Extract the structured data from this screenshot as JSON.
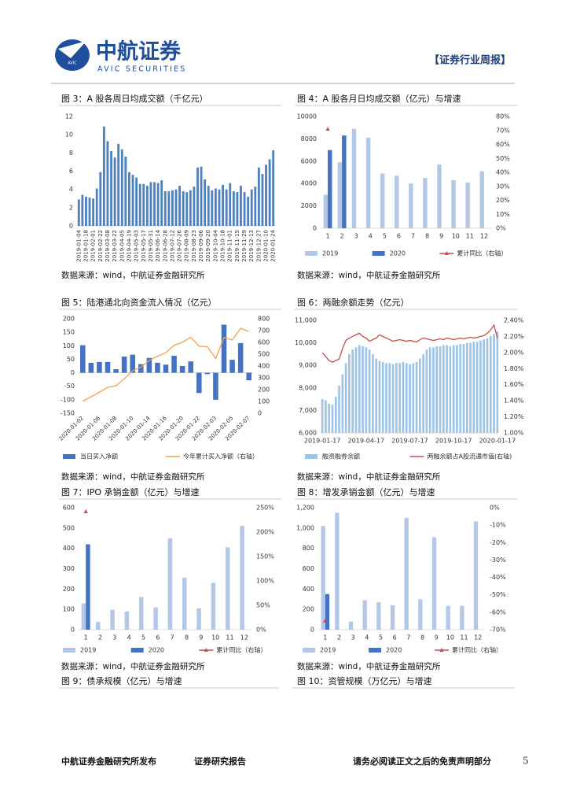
{
  "header": {
    "logo_mark": "AVIC",
    "logo_cn": "中航证券",
    "logo_en": "AVIC SECURITIES",
    "report_type": "【证券行业周报】"
  },
  "chart_data": [
    {
      "type": "bar",
      "title": "图 3：A 股各周日均成交额（千亿元）",
      "source": "数据来源：wind，中航证券金融研究所",
      "categories": [
        "2019-01-04",
        null,
        "2019-01-18",
        null,
        "2019-02-01",
        null,
        "2019-02-22",
        null,
        "2019-03-08",
        null,
        "2019-03-22",
        null,
        "2019-04-05",
        null,
        "2019-04-19",
        null,
        "2019-05-03",
        null,
        "2019-05-17",
        null,
        "2019-05-31",
        null,
        "2019-06-14",
        null,
        "2019-06-28",
        null,
        "2019-07-12",
        null,
        "2019-07-26",
        null,
        "2019-08-09",
        null,
        "2019-08-23",
        null,
        "2019-09-06",
        null,
        "2019-09-20",
        null,
        "2019-10-04",
        null,
        "2019-10-18",
        null,
        "2019-11-01",
        null,
        "2019-11-15",
        null,
        "2019-11-29",
        null,
        "2019-12-13",
        null,
        "2019-12-27",
        null,
        "2020-01-10",
        null,
        "2020-01-24"
      ],
      "series": [
        {
          "name": "成交额",
          "color": "#4f81bd",
          "values": [
            2.9,
            3.4,
            3.2,
            3.1,
            3.0,
            4.1,
            5.9,
            10.9,
            9.3,
            8.2,
            7.5,
            9.0,
            8.4,
            7.6,
            5.9,
            5.6,
            5.3,
            4.6,
            4.6,
            4.4,
            4.8,
            4.8,
            4.7,
            5.0,
            3.8,
            3.8,
            3.9,
            4.0,
            4.4,
            3.8,
            3.7,
            3.9,
            4.3,
            6.4,
            6.5,
            5.1,
            4.4,
            3.9,
            4.1,
            4.0,
            4.5,
            4.0,
            4.7,
            3.8,
            3.7,
            4.4,
            3.7,
            3.2,
            4.0,
            4.3,
            6.4,
            5.7,
            6.7,
            7.3,
            8.3
          ]
        }
      ],
      "ylim": [
        0,
        12
      ],
      "yticks": [
        0,
        2,
        4,
        6,
        8,
        10,
        12
      ],
      "legend": false
    },
    {
      "type": "bar",
      "title": "图 4：A 股各月日均成交额（亿元）与增速",
      "source": "数据来源：wind，中航证券金融研究所",
      "categories": [
        "1",
        "2",
        "3",
        "4",
        "5",
        "6",
        "7",
        "8",
        "9",
        "10",
        "11",
        "12"
      ],
      "series": [
        {
          "name": "2019",
          "color": "#b4c7e7",
          "values": [
            3000,
            5900,
            8900,
            8100,
            4900,
            4700,
            4000,
            4500,
            5700,
            4300,
            4100,
            5100
          ]
        },
        {
          "name": "2020",
          "color": "#4472c4",
          "values": [
            7000,
            8300,
            null,
            null,
            null,
            null,
            null,
            null,
            null,
            null,
            null,
            null
          ]
        },
        {
          "name": "累计同比（右轴）",
          "color": "#c0504d",
          "style": "marker",
          "axis": "y2",
          "values": [
            71,
            null,
            null,
            null,
            null,
            null,
            null,
            null,
            null,
            null,
            null,
            null
          ]
        }
      ],
      "ylim": [
        0,
        10000
      ],
      "yticks": [
        0,
        2000,
        4000,
        6000,
        8000,
        10000
      ],
      "y2lim": [
        0,
        80
      ],
      "y2ticks": [
        {
          "value": 0,
          "label": "0%"
        },
        {
          "value": 10,
          "label": "10%"
        },
        {
          "value": 20,
          "label": "20%"
        },
        {
          "value": 30,
          "label": "30%"
        },
        {
          "value": 40,
          "label": "40%"
        },
        {
          "value": 50,
          "label": "50%"
        },
        {
          "value": 60,
          "label": "60%"
        },
        {
          "value": 70,
          "label": "70%"
        },
        {
          "value": 80,
          "label": "80%"
        }
      ],
      "legend": true
    },
    {
      "type": "bar",
      "title": "图 5：陆港通北向资金流入情况（亿元）",
      "source": "数据来源：wind，中航证券金融研究所",
      "categories": [
        "2020-01-02",
        null,
        "2020-01-06",
        null,
        "2020-01-08",
        null,
        "2020-01-10",
        null,
        "2020-01-14",
        null,
        "2020-01-16",
        null,
        "2020-01-20",
        null,
        "2020-01-22",
        null,
        "2020-02-03",
        null,
        "2020-02-05",
        null,
        "2020-02-07"
      ],
      "series": [
        {
          "name": "当日买入净额",
          "color": "#4472c4",
          "values": [
            102,
            37,
            40,
            40,
            13,
            60,
            67,
            32,
            55,
            37,
            30,
            63,
            25,
            42,
            -75,
            -5,
            -100,
            178,
            48,
            110,
            -28
          ]
        },
        {
          "name": "今年累计买入净额（右轴）",
          "color": "#f0a050",
          "style": "line",
          "axis": "y2",
          "values": [
            102,
            139,
            179,
            219,
            232,
            292,
            359,
            391,
            446,
            483,
            513,
            576,
            601,
            643,
            568,
            563,
            463,
            641,
            620,
            720,
            692
          ]
        }
      ],
      "ylim": [
        -150,
        200
      ],
      "yticks": [
        -150,
        -100,
        -50,
        0,
        50,
        100,
        150,
        200
      ],
      "y2lim": [
        0,
        800
      ],
      "y2ticks": [
        0,
        100,
        200,
        300,
        400,
        500,
        600,
        700,
        800
      ],
      "legend": true
    },
    {
      "type": "bar",
      "title": "图 6：两融余额走势（亿元）",
      "source": "数据来源：wind，中航证券金融研究所",
      "categories": [
        "2019-01-17",
        null,
        null,
        null,
        null,
        null,
        null,
        null,
        null,
        null,
        null,
        null,
        null,
        "2019-04-17",
        null,
        null,
        null,
        null,
        null,
        null,
        null,
        null,
        null,
        null,
        null,
        null,
        "2019-07-17",
        null,
        null,
        null,
        null,
        null,
        null,
        null,
        null,
        null,
        null,
        null,
        null,
        "2019-10-17",
        null,
        null,
        null,
        null,
        null,
        null,
        null,
        null,
        null,
        null,
        null,
        null,
        "2020-01-17"
      ],
      "series": [
        {
          "name": "融资融券余额",
          "color": "#9dc3e6",
          "values": [
            7500,
            7450,
            7300,
            7250,
            7600,
            8100,
            8600,
            9100,
            9500,
            9700,
            9800,
            9900,
            9850,
            9800,
            9700,
            9500,
            9300,
            9200,
            9150,
            9100,
            9100,
            9050,
            9100,
            9100,
            9150,
            9100,
            9050,
            9100,
            9150,
            9300,
            9500,
            9700,
            9800,
            9800,
            9850,
            9850,
            9900,
            9900,
            9850,
            9900,
            9900,
            9950,
            9950,
            10000,
            10000,
            10050,
            10050,
            10100,
            10150,
            10200,
            10300,
            10400,
            10500
          ]
        },
        {
          "name": "两融余额占A股流通市值(右轴)",
          "color": "#c0504d",
          "style": "line",
          "axis": "y2",
          "values": [
            2.0,
            1.95,
            1.9,
            1.88,
            1.9,
            1.92,
            2.05,
            2.15,
            2.18,
            2.2,
            2.22,
            2.24,
            2.2,
            2.18,
            2.14,
            2.16,
            2.18,
            2.22,
            2.2,
            2.18,
            2.16,
            2.14,
            2.15,
            2.16,
            2.15,
            2.14,
            2.15,
            2.14,
            2.13,
            2.16,
            2.18,
            2.17,
            2.16,
            2.15,
            2.16,
            2.17,
            2.16,
            2.18,
            2.17,
            2.16,
            2.17,
            2.18,
            2.17,
            2.18,
            2.19,
            2.18,
            2.19,
            2.2,
            2.21,
            2.24,
            2.28,
            2.34,
            2.18
          ]
        }
      ],
      "ylim": [
        6000,
        11000
      ],
      "yticks": [
        {
          "value": 6000,
          "label": "6,000"
        },
        {
          "value": 7000,
          "label": "7,000"
        },
        {
          "value": 8000,
          "label": "8,000"
        },
        {
          "value": 9000,
          "label": "9,000"
        },
        {
          "value": 10000,
          "label": "10,000"
        },
        {
          "value": 11000,
          "label": "11,000"
        }
      ],
      "y2lim": [
        1,
        2.4
      ],
      "y2ticks": [
        {
          "value": 1,
          "label": "1.00%"
        },
        {
          "value": 1.2,
          "label": "1.20%"
        },
        {
          "value": 1.4,
          "label": "1.40%"
        },
        {
          "value": 1.6,
          "label": "1.60%"
        },
        {
          "value": 1.8,
          "label": "1.80%"
        },
        {
          "value": 2,
          "label": "2.00%"
        },
        {
          "value": 2.2,
          "label": "2.20%"
        },
        {
          "value": 2.4,
          "label": "2.40%"
        }
      ],
      "legend": true
    },
    {
      "type": "bar",
      "title": "图 7：IPO 承销金额（亿元）与增速",
      "source": "数据来源：wind，中航证券金融研究所",
      "categories": [
        "1",
        "2",
        "3",
        "4",
        "5",
        "6",
        "7",
        "8",
        "9",
        "10",
        "11",
        "12"
      ],
      "series": [
        {
          "name": "2019",
          "color": "#b4c7e7",
          "values": [
            130,
            38,
            98,
            90,
            160,
            110,
            450,
            255,
            105,
            230,
            405,
            510
          ]
        },
        {
          "name": "2020",
          "color": "#4472c4",
          "values": [
            420,
            null,
            null,
            null,
            null,
            null,
            null,
            null,
            null,
            null,
            null,
            null
          ]
        },
        {
          "name": "累计同比（右轴）",
          "color": "#c0504d",
          "style": "marker",
          "axis": "y2",
          "values": [
            242,
            null,
            null,
            null,
            null,
            null,
            null,
            null,
            null,
            null,
            null,
            null
          ]
        }
      ],
      "ylim": [
        0,
        600
      ],
      "yticks": [
        0,
        100,
        200,
        300,
        400,
        500,
        600
      ],
      "y2lim": [
        0,
        250
      ],
      "y2ticks": [
        {
          "value": 0,
          "label": "0%"
        },
        {
          "value": 50,
          "label": "50%"
        },
        {
          "value": 100,
          "label": "100%"
        },
        {
          "value": 150,
          "label": "150%"
        },
        {
          "value": 200,
          "label": "200%"
        },
        {
          "value": 250,
          "label": "250%"
        }
      ],
      "legend": true
    },
    {
      "type": "bar",
      "title": "图 8：增发承销金额（亿元）与增速",
      "source": "数据来源：wind，中航证券金融研究所",
      "categories": [
        "1",
        "2",
        "3",
        "4",
        "5",
        "6",
        "7",
        "8",
        "9",
        "10",
        "11",
        "12"
      ],
      "series": [
        {
          "name": "2019",
          "color": "#b4c7e7",
          "values": [
            1020,
            1150,
            80,
            290,
            270,
            240,
            1100,
            300,
            910,
            235,
            235,
            1065
          ]
        },
        {
          "name": "2020",
          "color": "#4472c4",
          "values": [
            350,
            null,
            null,
            null,
            null,
            null,
            null,
            null,
            null,
            null,
            null,
            null
          ]
        },
        {
          "name": "累计同比（右轴）",
          "color": "#c0504d",
          "style": "marker",
          "axis": "y2",
          "values": [
            -65,
            null,
            null,
            null,
            null,
            null,
            null,
            null,
            null,
            null,
            null,
            null
          ]
        }
      ],
      "ylim": [
        0,
        1200
      ],
      "yticks": [
        0,
        200,
        400,
        600,
        800,
        {
          "value": 1000,
          "label": "1,000"
        },
        {
          "value": 1200,
          "label": "1,200"
        }
      ],
      "y2lim": [
        -70,
        0
      ],
      "y2ticks": [
        {
          "value": 0,
          "label": "0%"
        },
        {
          "value": -10,
          "label": "-10%"
        },
        {
          "value": -20,
          "label": "-20%"
        },
        {
          "value": -30,
          "label": "-30%"
        },
        {
          "value": -40,
          "label": "-40%"
        },
        {
          "value": -50,
          "label": "-50%"
        },
        {
          "value": -60,
          "label": "-60%"
        },
        {
          "value": -70,
          "label": "-70%"
        }
      ],
      "legend": true
    }
  ],
  "captions": [
    "图 9：债承规模（亿元）与增速",
    "图 10：资管规模（万亿元）与增速"
  ],
  "footer": {
    "publisher": "中航证券金融研究所发布",
    "doc_type": "证券研究报告",
    "disclaimer": "请务必阅读正文之后的免责声明部分",
    "page": 5
  }
}
